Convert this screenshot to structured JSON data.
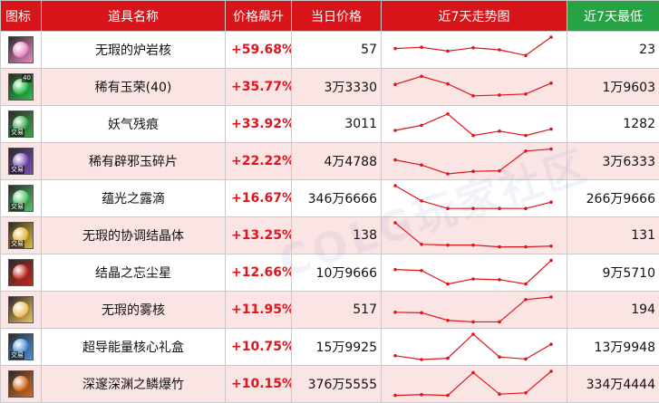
{
  "headers": {
    "icon": "图标",
    "name": "道具名称",
    "change": "价格飙升",
    "price": "当日价格",
    "trend": "近7天走势图",
    "min": "近7天最低"
  },
  "watermark": "COLG玩家社区",
  "colors": {
    "header_red": "#d7141a",
    "header_green": "#25a244",
    "row_pink": "#fbe4e4",
    "change_red": "#e0151b",
    "trend_line": "#e0151b"
  },
  "items": [
    {
      "name": "无瑕的炉岩核",
      "change": "+59.68%",
      "price": "57",
      "min": "23",
      "icon": "pink-rose-core-icon",
      "icon_color": "#e98ac0",
      "tradable_tag": "",
      "count_badge": "",
      "trend": [
        0.55,
        0.6,
        0.45,
        0.58,
        0.5,
        0.28,
        1.0
      ]
    },
    {
      "name": "稀有玉荣(40)",
      "change": "+35.77%",
      "price": "3万3330",
      "min": "1万9603",
      "icon": "green-jade-icon",
      "icon_color": "#2fbf4a",
      "tradable_tag": "",
      "count_badge": "40",
      "trend": [
        0.6,
        0.92,
        0.62,
        0.15,
        0.18,
        0.22,
        0.65
      ]
    },
    {
      "name": "妖气残痕",
      "change": "+33.92%",
      "price": "3011",
      "min": "1282",
      "icon": "green-crystal-icon",
      "icon_color": "#38a84a",
      "tradable_tag": "交易",
      "count_badge": "",
      "trend": [
        0.25,
        0.45,
        0.9,
        0.05,
        0.22,
        0.05,
        0.3
      ]
    },
    {
      "name": "稀有辟邪玉碎片",
      "change": "+22.22%",
      "price": "4万4788",
      "min": "3万6333",
      "icon": "purple-orb-icon",
      "icon_color": "#7a4fb3",
      "tradable_tag": "交易",
      "count_badge": "",
      "trend": [
        0.55,
        0.35,
        0.0,
        0.1,
        0.12,
        0.9,
        0.98
      ]
    },
    {
      "name": "蕴光之露滴",
      "change": "+16.67%",
      "price": "346万6666",
      "min": "266万9666",
      "icon": "green-dew-icon",
      "icon_color": "#55c36a",
      "tradable_tag": "交易",
      "count_badge": "",
      "trend": [
        1.0,
        0.4,
        0.1,
        0.1,
        0.1,
        0.1,
        0.35
      ]
    },
    {
      "name": "无瑕的协调结晶体",
      "change": "+13.25%",
      "price": "138",
      "min": "131",
      "icon": "golden-crystal-icon",
      "icon_color": "#e0b836",
      "tradable_tag": "交易",
      "count_badge": "",
      "trend": [
        1.0,
        0.15,
        0.12,
        0.12,
        0.05,
        0.05,
        0.08
      ]
    },
    {
      "name": "结晶之忘尘星",
      "change": "+12.66%",
      "price": "10万9666",
      "min": "9万5710",
      "icon": "red-star-crystal-icon",
      "icon_color": "#c0281e",
      "tradable_tag": "",
      "count_badge": "",
      "trend": [
        0.62,
        0.58,
        0.05,
        0.25,
        0.22,
        0.05,
        0.98
      ]
    },
    {
      "name": "无瑕的雾核",
      "change": "+11.95%",
      "price": "517",
      "min": "194",
      "icon": "yellow-mist-core-icon",
      "icon_color": "#f0c060",
      "tradable_tag": "",
      "count_badge": "",
      "trend": [
        0.4,
        0.38,
        0.08,
        0.02,
        0.02,
        0.9,
        1.0
      ]
    },
    {
      "name": "超导能量核心礼盒",
      "change": "+10.75%",
      "price": "15万9925",
      "min": "13万9948",
      "icon": "blue-energy-box-icon",
      "icon_color": "#4a8fd8",
      "tradable_tag": "交易",
      "count_badge": "",
      "trend": [
        0.15,
        0.0,
        0.05,
        1.0,
        0.1,
        0.02,
        0.6
      ]
    },
    {
      "name": "深邃深渊之鳞爆竹",
      "change": "+10.15%",
      "price": "376万5555",
      "min": "334万4444",
      "icon": "orange-firecracker-icon",
      "icon_color": "#d46a1e",
      "tradable_tag": "",
      "count_badge": "",
      "trend": [
        0.05,
        0.08,
        0.05,
        0.95,
        0.1,
        0.15,
        1.0
      ]
    }
  ]
}
